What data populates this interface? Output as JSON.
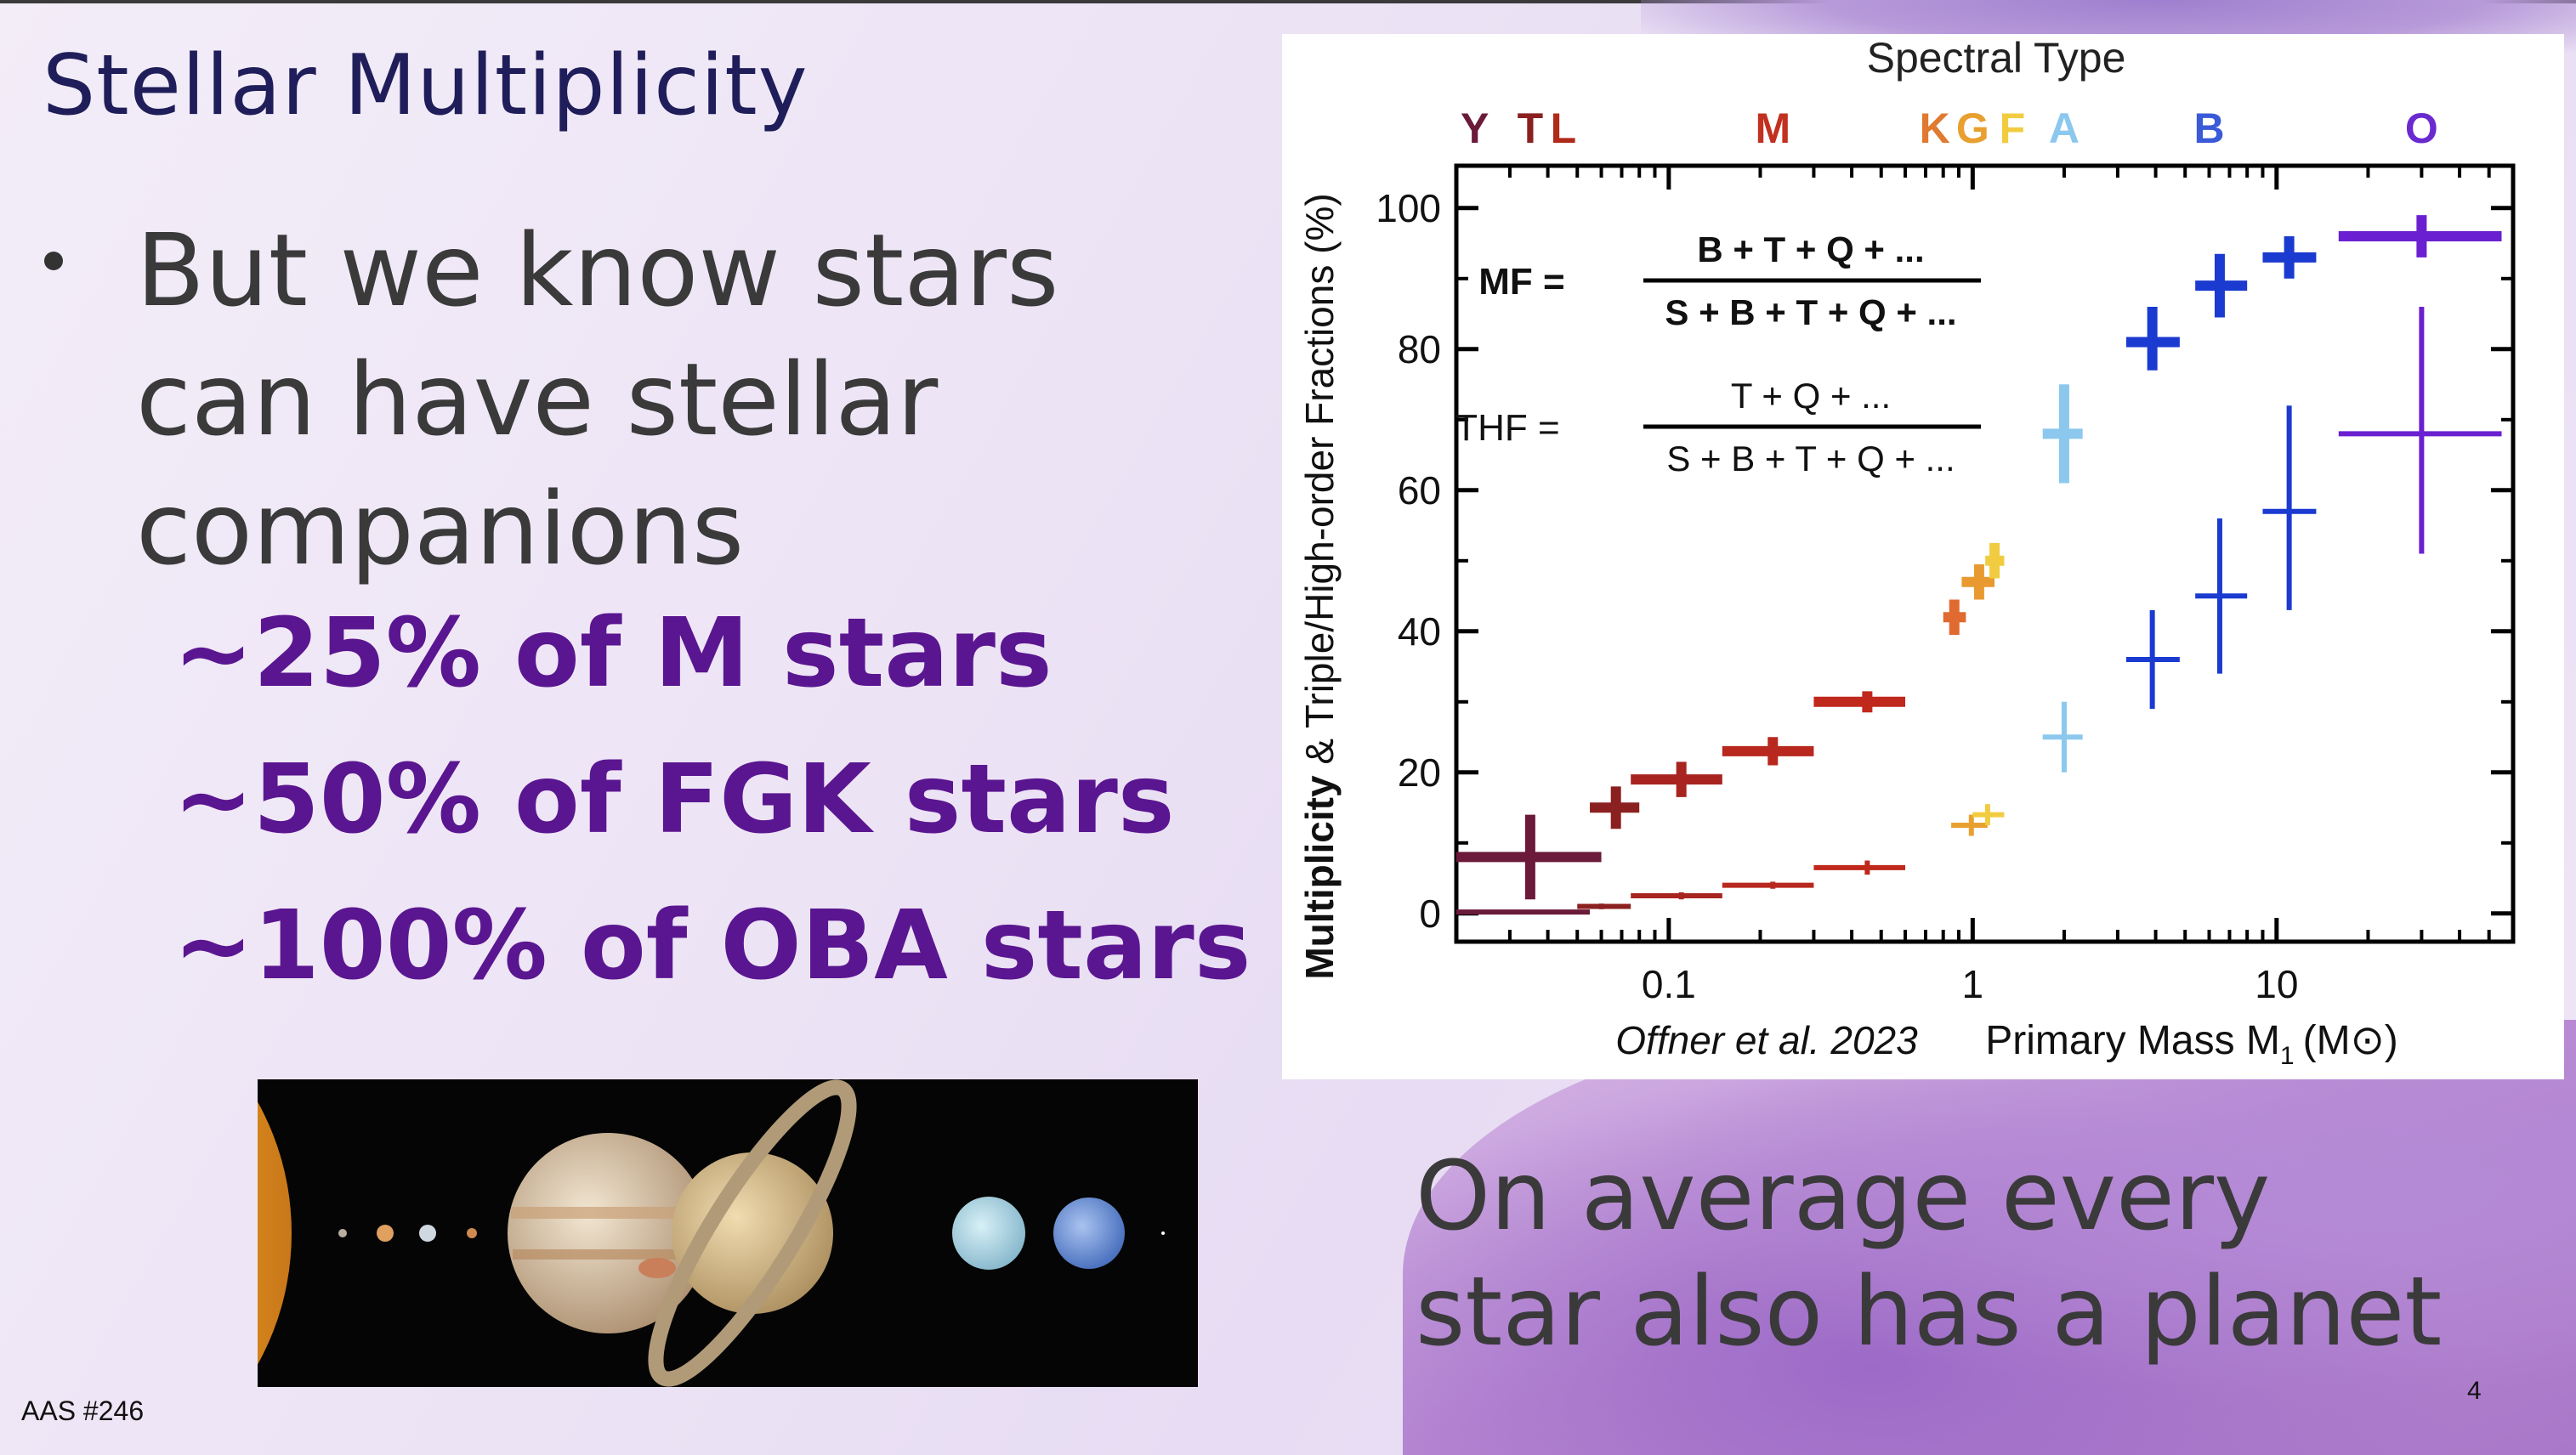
{
  "slide": {
    "title": "Stellar Multiplicity",
    "bullet_text": "But we know stars can have stellar companions",
    "stats": [
      "~25% of M stars",
      "~50% of FGK stars",
      "~100% of OBA stars"
    ],
    "planet_note_line1": "On average every",
    "planet_note_line2": "star also has a planet",
    "footer": "AAS #246",
    "page_number": "4"
  },
  "chart_data": {
    "type": "scatter",
    "xlabel": "Primary Mass M",
    "xlabel_subscript": "1",
    "xlabel_unit": "(M⊙)",
    "ylabel": "Multiplicity & Triple/High-order Fractions (%)",
    "ylabel_bold": "Multiplicity",
    "ylabel_rest": " & Triple/High-order Fractions (%)",
    "top_axis_title": "Spectral Type",
    "citation": "Offner et al. 2023",
    "x_scale": "log",
    "xlim": [
      0.02,
      60
    ],
    "ylim": [
      -4,
      106
    ],
    "x_ticks": [
      {
        "value": 0.1,
        "label": "0.1"
      },
      {
        "value": 1,
        "label": "1"
      },
      {
        "value": 10,
        "label": "10"
      }
    ],
    "y_ticks": [
      {
        "value": 0,
        "label": "0"
      },
      {
        "value": 20,
        "label": "20"
      },
      {
        "value": 40,
        "label": "40"
      },
      {
        "value": 60,
        "label": "60"
      },
      {
        "value": 80,
        "label": "80"
      },
      {
        "value": 100,
        "label": "100"
      }
    ],
    "spectral_types": [
      {
        "label": "Y",
        "mass": 0.023,
        "color": "#6b1a3a"
      },
      {
        "label": "T",
        "mass": 0.035,
        "color": "#8b2020"
      },
      {
        "label": "L",
        "mass": 0.045,
        "color": "#b02a1a"
      },
      {
        "label": "M",
        "mass": 0.22,
        "color": "#c23020"
      },
      {
        "label": "K",
        "mass": 0.75,
        "color": "#e07a30"
      },
      {
        "label": "G",
        "mass": 1.0,
        "color": "#e8a030"
      },
      {
        "label": "F",
        "mass": 1.35,
        "color": "#f2cc40"
      },
      {
        "label": "A",
        "mass": 2.0,
        "color": "#8cc8ee"
      },
      {
        "label": "B",
        "mass": 6.0,
        "color": "#3a5ad8"
      },
      {
        "label": "O",
        "mass": 30,
        "color": "#6a2ad0"
      }
    ],
    "formulas": [
      {
        "lhs": "MF =",
        "numerator": "B + T + Q + ...",
        "denominator": "S + B + T + Q + ...",
        "bold": true
      },
      {
        "lhs": "THF =",
        "numerator": "T + Q + ...",
        "denominator": "S + B + T + Q + ...",
        "bold": false
      }
    ],
    "series": [
      {
        "name": "MF",
        "points": [
          {
            "x": 0.035,
            "xlo": 0.02,
            "xhi": 0.06,
            "y": 8,
            "ylo": 2,
            "yhi": 14,
            "color": "#6b1a3a"
          },
          {
            "x": 0.067,
            "xlo": 0.055,
            "xhi": 0.08,
            "y": 15,
            "ylo": 12,
            "yhi": 18,
            "color": "#8b2020"
          },
          {
            "x": 0.11,
            "xlo": 0.075,
            "xhi": 0.15,
            "y": 19,
            "ylo": 16.5,
            "yhi": 21.5,
            "color": "#a82420"
          },
          {
            "x": 0.22,
            "xlo": 0.15,
            "xhi": 0.3,
            "y": 23,
            "ylo": 21,
            "yhi": 25,
            "color": "#b8281e"
          },
          {
            "x": 0.45,
            "xlo": 0.3,
            "xhi": 0.6,
            "y": 30,
            "ylo": 28.5,
            "yhi": 31.5,
            "color": "#c0281c"
          },
          {
            "x": 0.87,
            "xlo": 0.8,
            "xhi": 0.95,
            "y": 42,
            "ylo": 39.5,
            "yhi": 44.5,
            "color": "#e06a30"
          },
          {
            "x": 1.05,
            "xlo": 0.92,
            "xhi": 1.18,
            "y": 47,
            "ylo": 44.5,
            "yhi": 49.5,
            "color": "#e89a30"
          },
          {
            "x": 1.18,
            "xlo": 1.1,
            "xhi": 1.27,
            "y": 50,
            "ylo": 47.5,
            "yhi": 52.5,
            "color": "#f2cc40"
          },
          {
            "x": 2.0,
            "xlo": 1.7,
            "xhi": 2.3,
            "y": 68,
            "ylo": 61,
            "yhi": 75,
            "color": "#8cc8ee"
          },
          {
            "x": 3.9,
            "xlo": 3.2,
            "xhi": 4.8,
            "y": 81,
            "ylo": 77,
            "yhi": 86,
            "color": "#1a3ad0"
          },
          {
            "x": 6.5,
            "xlo": 5.4,
            "xhi": 8.0,
            "y": 89,
            "ylo": 84.5,
            "yhi": 93.5,
            "color": "#1a3ad0"
          },
          {
            "x": 11,
            "xlo": 9,
            "xhi": 13.5,
            "y": 93,
            "ylo": 90,
            "yhi": 96,
            "color": "#1a3ad0"
          },
          {
            "x": 30,
            "xlo": 16,
            "xhi": 55,
            "y": 96,
            "ylo": 93,
            "yhi": 99,
            "color": "#6a20d0"
          }
        ]
      },
      {
        "name": "THF",
        "points": [
          {
            "x": 0.035,
            "xlo": 0.02,
            "xhi": 0.055,
            "y": 0.2,
            "ylo": 0,
            "yhi": 0.4,
            "color": "#6b1a3a"
          },
          {
            "x": 0.06,
            "xlo": 0.05,
            "xhi": 0.075,
            "y": 1,
            "ylo": 0.6,
            "yhi": 1.4,
            "color": "#8b2020"
          },
          {
            "x": 0.11,
            "xlo": 0.075,
            "xhi": 0.15,
            "y": 2.5,
            "ylo": 2,
            "yhi": 3,
            "color": "#a82420"
          },
          {
            "x": 0.22,
            "xlo": 0.15,
            "xhi": 0.3,
            "y": 4,
            "ylo": 3.5,
            "yhi": 4.5,
            "color": "#b8281e"
          },
          {
            "x": 0.45,
            "xlo": 0.3,
            "xhi": 0.6,
            "y": 6.5,
            "ylo": 5.5,
            "yhi": 7.5,
            "color": "#c0281c"
          },
          {
            "x": 0.99,
            "xlo": 0.85,
            "xhi": 1.12,
            "y": 12.5,
            "ylo": 11,
            "yhi": 14,
            "color": "#e8a030"
          },
          {
            "x": 1.12,
            "xlo": 1.0,
            "xhi": 1.27,
            "y": 14,
            "ylo": 12.5,
            "yhi": 15.5,
            "color": "#f2cc40"
          },
          {
            "x": 2.0,
            "xlo": 1.7,
            "xhi": 2.3,
            "y": 25,
            "ylo": 20,
            "yhi": 30,
            "color": "#8cc8ee"
          },
          {
            "x": 3.9,
            "xlo": 3.2,
            "xhi": 4.8,
            "y": 36,
            "ylo": 29,
            "yhi": 43,
            "color": "#1a3ad0"
          },
          {
            "x": 6.5,
            "xlo": 5.4,
            "xhi": 8.0,
            "y": 45,
            "ylo": 34,
            "yhi": 56,
            "color": "#1a3ad0"
          },
          {
            "x": 11,
            "xlo": 9,
            "xhi": 13.5,
            "y": 57,
            "ylo": 43,
            "yhi": 72,
            "color": "#1a3ad0"
          },
          {
            "x": 30,
            "xlo": 16,
            "xhi": 55,
            "y": 68,
            "ylo": 51,
            "yhi": 86,
            "color": "#6a20d0"
          }
        ]
      }
    ]
  }
}
